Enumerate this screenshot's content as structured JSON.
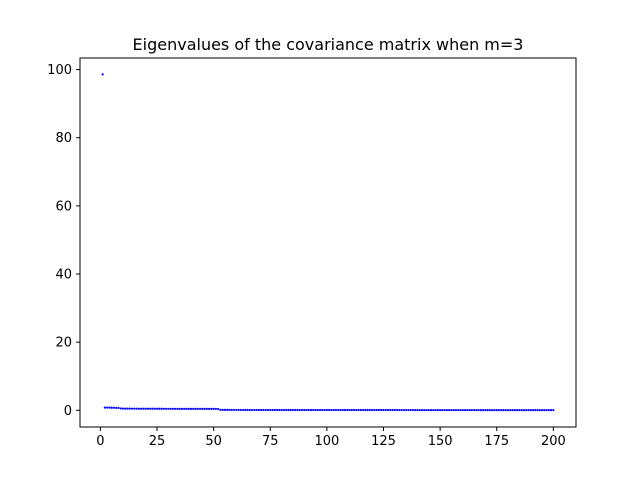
{
  "chart_data": {
    "type": "scatter",
    "title": "Eigenvalues of the covariance matrix when m=3",
    "xlabel": "",
    "ylabel": "",
    "xlim": [
      -9,
      210
    ],
    "ylim": [
      -4.9,
      103.4
    ],
    "xticks": [
      0,
      25,
      50,
      75,
      100,
      125,
      150,
      175,
      200
    ],
    "yticks": [
      0,
      20,
      40,
      60,
      80,
      100
    ],
    "grid": false,
    "marker_color": "#0000ff",
    "series": [
      {
        "points": [
          [
            1,
            98.6
          ],
          [
            2,
            0.8
          ],
          [
            3,
            0.8
          ],
          [
            4,
            0.8
          ],
          [
            5,
            0.75
          ],
          [
            6,
            0.75
          ],
          [
            7,
            0.7
          ],
          [
            8,
            0.7
          ],
          [
            9,
            0.55
          ],
          [
            10,
            0.5
          ],
          [
            11,
            0.5
          ],
          [
            12,
            0.5
          ],
          [
            13,
            0.5
          ],
          [
            14,
            0.48
          ],
          [
            15,
            0.48
          ],
          [
            20,
            0.45
          ],
          [
            25,
            0.45
          ],
          [
            30,
            0.44
          ],
          [
            35,
            0.43
          ],
          [
            40,
            0.42
          ],
          [
            45,
            0.42
          ],
          [
            50,
            0.41
          ],
          [
            52,
            0.4
          ],
          [
            53,
            0.12
          ],
          [
            55,
            0.12
          ],
          [
            60,
            0.11
          ],
          [
            70,
            0.1
          ],
          [
            80,
            0.1
          ],
          [
            90,
            0.09
          ],
          [
            100,
            0.09
          ],
          [
            110,
            0.08
          ],
          [
            120,
            0.08
          ],
          [
            130,
            0.08
          ],
          [
            140,
            0.07
          ],
          [
            150,
            0.07
          ],
          [
            160,
            0.07
          ],
          [
            170,
            0.06
          ],
          [
            180,
            0.06
          ],
          [
            190,
            0.05
          ],
          [
            200,
            0.05
          ]
        ]
      }
    ]
  }
}
